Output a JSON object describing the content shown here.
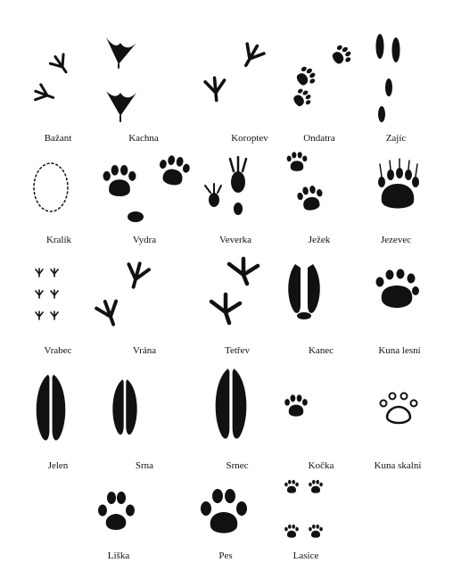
{
  "tracks": [
    {
      "label": "Bažant"
    },
    {
      "label": "Kachna"
    },
    {
      "label": "Koroptev"
    },
    {
      "label": "Ondatra"
    },
    {
      "label": "Zajíc"
    },
    {
      "label": "Kralík"
    },
    {
      "label": "Vydra"
    },
    {
      "label": "Veverka"
    },
    {
      "label": "Ježek"
    },
    {
      "label": "Jezevec"
    },
    {
      "label": "Vrabec"
    },
    {
      "label": "Vrána"
    },
    {
      "label": "Tetřev"
    },
    {
      "label": "Kanec"
    },
    {
      "label": "Kuna lesní"
    },
    {
      "label": "Jelen"
    },
    {
      "label": "Srna"
    },
    {
      "label": "Srnec"
    },
    {
      "label": "Kočka"
    },
    {
      "label": "Kuna skalní"
    },
    {
      "label": "Liška"
    },
    {
      "label": "Pes"
    },
    {
      "label": "Lasice"
    }
  ],
  "ink_color": "#111111"
}
